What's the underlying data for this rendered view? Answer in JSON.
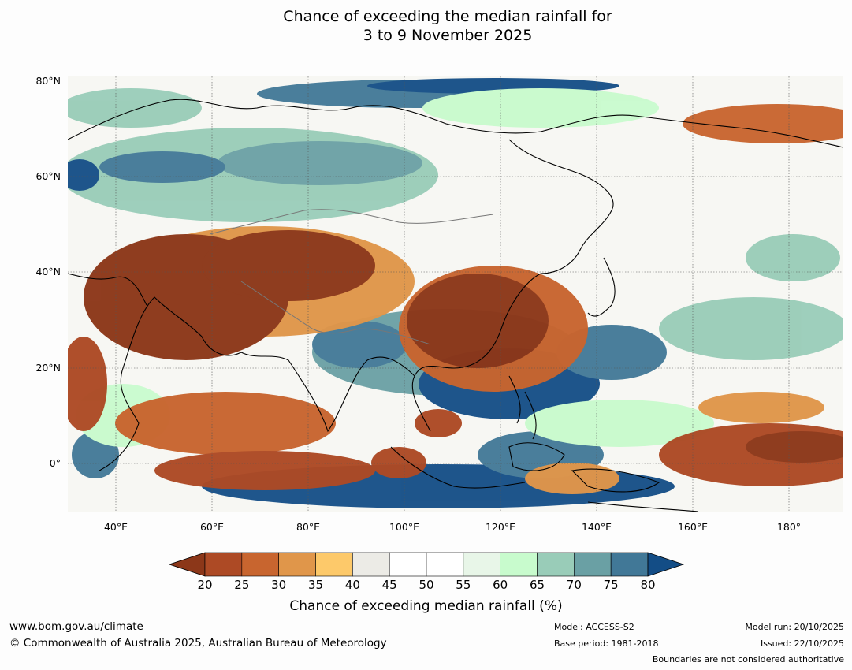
{
  "title": {
    "line1": "Chance of exceeding the median rainfall for",
    "line2": "3 to 9 November 2025"
  },
  "map": {
    "latitude_labels": [
      "80°N",
      "60°N",
      "40°N",
      "20°N",
      "0°"
    ],
    "longitude_labels": [
      "40°E",
      "60°E",
      "80°E",
      "100°E",
      "120°E",
      "140°E",
      "160°E",
      "180°"
    ],
    "extent": {
      "lon_min": 30,
      "lon_max": 191,
      "lat_min": -10,
      "lat_max": 80
    }
  },
  "colorbar": {
    "title": "Chance of exceeding median rainfall (%)",
    "ticks": [
      "20",
      "25",
      "30",
      "35",
      "40",
      "45",
      "50",
      "55",
      "60",
      "65",
      "70",
      "75",
      "80"
    ],
    "colors": [
      "#8c3719",
      "#ad4a25",
      "#c8652f",
      "#e0964a",
      "#fdc96a",
      "#ecebe6",
      "#ffffff",
      "#ffffff",
      "#e8f6e8",
      "#c8fbcd",
      "#99ccb8",
      "#6aa0a4",
      "#417897",
      "#134d86"
    ]
  },
  "footer": {
    "website": "www.bom.gov.au/climate",
    "copyright": "© Commonwealth of Australia 2025, Australian Bureau of Meteorology",
    "model": "Model: ACCESS-S2",
    "base_period": "Base period: 1981-2018",
    "model_run": "Model run: 20/10/2025",
    "issued": "Issued: 22/10/2025",
    "disclaimer": "Boundaries are not considered authoritative"
  }
}
